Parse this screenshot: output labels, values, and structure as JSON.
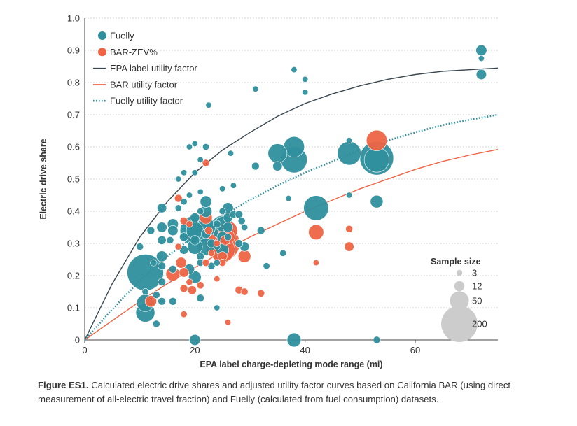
{
  "chart_data": {
    "type": "scatter",
    "xlabel": "EPA label charge-depleting mode range (mi)",
    "ylabel": "Electric drive share",
    "xlim": [
      0,
      75
    ],
    "ylim": [
      0,
      1.0
    ],
    "x_ticks": [
      0,
      20,
      40,
      60
    ],
    "y_ticks": [
      0,
      0.1,
      0.2,
      0.3,
      0.4,
      0.5,
      0.6,
      0.7,
      0.8,
      0.9,
      1.0
    ],
    "x_tick_labels": [
      "0",
      "20",
      "40",
      "60"
    ],
    "y_tick_labels": [
      "0",
      "0.1",
      "0.2",
      "0.3",
      "0.4",
      "0.5",
      "0.6",
      "0.7",
      "0.8",
      "0.9",
      "1.0"
    ],
    "grid": "horizontal dotted",
    "colors": {
      "fuelly": "#2f8f9d",
      "bar": "#ee6444",
      "epa": "#3a4750",
      "size_legend": "#cccccc"
    },
    "series": [
      {
        "name": "Fuelly",
        "kind": "points",
        "points": [
          {
            "x": 11,
            "y": 0.21,
            "n": 200
          },
          {
            "x": 11,
            "y": 0.085,
            "n": 50
          },
          {
            "x": 11,
            "y": 0.115,
            "n": 40
          },
          {
            "x": 11,
            "y": 0.15,
            "n": 4
          },
          {
            "x": 10,
            "y": 0.29,
            "n": 5
          },
          {
            "x": 12,
            "y": 0.34,
            "n": 6
          },
          {
            "x": 12.5,
            "y": 0.24,
            "n": 4
          },
          {
            "x": 13,
            "y": 0.05,
            "n": 5
          },
          {
            "x": 13,
            "y": 0.14,
            "n": 5
          },
          {
            "x": 14,
            "y": 0.41,
            "n": 10
          },
          {
            "x": 14,
            "y": 0.35,
            "n": 12
          },
          {
            "x": 14,
            "y": 0.31,
            "n": 8
          },
          {
            "x": 14,
            "y": 0.26,
            "n": 14
          },
          {
            "x": 14,
            "y": 0.23,
            "n": 6
          },
          {
            "x": 14,
            "y": 0.12,
            "n": 6
          },
          {
            "x": 14,
            "y": 0.18,
            "n": 6
          },
          {
            "x": 15.5,
            "y": 0.31,
            "n": 5
          },
          {
            "x": 16,
            "y": 0.34,
            "n": 12
          },
          {
            "x": 16,
            "y": 0.36,
            "n": 14
          },
          {
            "x": 16,
            "y": 0.22,
            "n": 6
          },
          {
            "x": 16,
            "y": 0.12,
            "n": 6
          },
          {
            "x": 17,
            "y": 0.5,
            "n": 3
          },
          {
            "x": 17,
            "y": 0.41,
            "n": 4
          },
          {
            "x": 18,
            "y": 0.32,
            "n": 8
          },
          {
            "x": 18,
            "y": 0.28,
            "n": 8
          },
          {
            "x": 18,
            "y": 0.52,
            "n": 3
          },
          {
            "x": 18,
            "y": 0.43,
            "n": 4
          },
          {
            "x": 19,
            "y": 0.6,
            "n": 3
          },
          {
            "x": 19,
            "y": 0.45,
            "n": 3
          },
          {
            "x": 19,
            "y": 0.22,
            "n": 12
          },
          {
            "x": 20,
            "y": 0.34,
            "n": 130
          },
          {
            "x": 20,
            "y": 0.34,
            "n": 40
          },
          {
            "x": 20,
            "y": 0.29,
            "n": 30
          },
          {
            "x": 20,
            "y": 0.195,
            "n": 20
          },
          {
            "x": 20,
            "y": 0.31,
            "n": 10
          },
          {
            "x": 20,
            "y": 0.0,
            "n": 14
          },
          {
            "x": 20,
            "y": 0.61,
            "n": 3
          },
          {
            "x": 20,
            "y": 0.38,
            "n": 10
          },
          {
            "x": 20,
            "y": 0.52,
            "n": 3
          },
          {
            "x": 21,
            "y": 0.26,
            "n": 6
          },
          {
            "x": 21,
            "y": 0.24,
            "n": 5
          },
          {
            "x": 21,
            "y": 0.4,
            "n": 4
          },
          {
            "x": 21,
            "y": 0.46,
            "n": 3
          },
          {
            "x": 21,
            "y": 0.13,
            "n": 6
          },
          {
            "x": 21,
            "y": 0.56,
            "n": 3
          },
          {
            "x": 22,
            "y": 0.35,
            "n": 50
          },
          {
            "x": 22,
            "y": 0.29,
            "n": 40
          },
          {
            "x": 22,
            "y": 0.43,
            "n": 16
          },
          {
            "x": 22,
            "y": 0.4,
            "n": 18
          },
          {
            "x": 22,
            "y": 0.33,
            "n": 10
          },
          {
            "x": 22,
            "y": 0.6,
            "n": 4
          },
          {
            "x": 22.5,
            "y": 0.73,
            "n": 3
          },
          {
            "x": 23,
            "y": 0.3,
            "n": 8
          },
          {
            "x": 23,
            "y": 0.23,
            "n": 5
          },
          {
            "x": 24,
            "y": 0.36,
            "n": 6
          },
          {
            "x": 24,
            "y": 0.29,
            "n": 4
          },
          {
            "x": 24,
            "y": 0.24,
            "n": 4
          },
          {
            "x": 24,
            "y": 0.1,
            "n": 3
          },
          {
            "x": 25,
            "y": 0.35,
            "n": 80
          },
          {
            "x": 25,
            "y": 0.36,
            "n": 30
          },
          {
            "x": 25,
            "y": 0.28,
            "n": 20
          },
          {
            "x": 25,
            "y": 0.32,
            "n": 14
          },
          {
            "x": 25,
            "y": 0.47,
            "n": 3
          },
          {
            "x": 25,
            "y": 0.4,
            "n": 4
          },
          {
            "x": 26,
            "y": 0.41,
            "n": 14
          },
          {
            "x": 26,
            "y": 0.35,
            "n": 12
          },
          {
            "x": 26,
            "y": 0.38,
            "n": 10
          },
          {
            "x": 26,
            "y": 0.32,
            "n": 5
          },
          {
            "x": 26.5,
            "y": 0.58,
            "n": 3
          },
          {
            "x": 27,
            "y": 0.39,
            "n": 6
          },
          {
            "x": 27,
            "y": 0.48,
            "n": 3
          },
          {
            "x": 28,
            "y": 0.39,
            "n": 6
          },
          {
            "x": 28,
            "y": 0.3,
            "n": 6
          },
          {
            "x": 28.5,
            "y": 0.37,
            "n": 5
          },
          {
            "x": 29,
            "y": 0.29,
            "n": 10
          },
          {
            "x": 29,
            "y": 0.35,
            "n": 4
          },
          {
            "x": 31,
            "y": 0.54,
            "n": 6
          },
          {
            "x": 31,
            "y": 0.78,
            "n": 3
          },
          {
            "x": 32,
            "y": 0.34,
            "n": 6
          },
          {
            "x": 33,
            "y": 0.23,
            "n": 4
          },
          {
            "x": 35,
            "y": 0.58,
            "n": 50
          },
          {
            "x": 35,
            "y": 0.54,
            "n": 10
          },
          {
            "x": 36,
            "y": 0.27,
            "n": 4
          },
          {
            "x": 38,
            "y": 0.6,
            "n": 60
          },
          {
            "x": 38,
            "y": 0.56,
            "n": 100
          },
          {
            "x": 38,
            "y": 0.0,
            "n": 25
          },
          {
            "x": 38,
            "y": 0.84,
            "n": 3
          },
          {
            "x": 37,
            "y": 0.44,
            "n": 3
          },
          {
            "x": 40,
            "y": 0.81,
            "n": 3
          },
          {
            "x": 40,
            "y": 0.77,
            "n": 3
          },
          {
            "x": 42,
            "y": 0.41,
            "n": 90
          },
          {
            "x": 48,
            "y": 0.58,
            "n": 80
          },
          {
            "x": 48,
            "y": 0.62,
            "n": 3
          },
          {
            "x": 48,
            "y": 0.45,
            "n": 3
          },
          {
            "x": 53,
            "y": 0.565,
            "n": 170
          },
          {
            "x": 53,
            "y": 0.56,
            "n": 90
          },
          {
            "x": 53,
            "y": 0.43,
            "n": 20
          },
          {
            "x": 53,
            "y": 0.0,
            "n": 5
          },
          {
            "x": 72,
            "y": 0.9,
            "n": 14
          },
          {
            "x": 72,
            "y": 0.875,
            "n": 3
          },
          {
            "x": 72,
            "y": 0.825,
            "n": 12
          }
        ]
      },
      {
        "name": "BAR-ZEV%",
        "kind": "points",
        "points": [
          {
            "x": 12,
            "y": 0.12,
            "n": 16
          },
          {
            "x": 16,
            "y": 0.205,
            "n": 25
          },
          {
            "x": 17,
            "y": 0.29,
            "n": 4
          },
          {
            "x": 17.5,
            "y": 0.24,
            "n": 14
          },
          {
            "x": 18,
            "y": 0.21,
            "n": 10
          },
          {
            "x": 17,
            "y": 0.44,
            "n": 6
          },
          {
            "x": 18,
            "y": 0.37,
            "n": 6
          },
          {
            "x": 18,
            "y": 0.16,
            "n": 6
          },
          {
            "x": 18,
            "y": 0.08,
            "n": 4
          },
          {
            "x": 19,
            "y": 0.18,
            "n": 4
          },
          {
            "x": 19,
            "y": 0.36,
            "n": 4
          },
          {
            "x": 19.5,
            "y": 0.155,
            "n": 8
          },
          {
            "x": 21,
            "y": 0.17,
            "n": 5
          },
          {
            "x": 22,
            "y": 0.55,
            "n": 5
          },
          {
            "x": 22,
            "y": 0.24,
            "n": 5
          },
          {
            "x": 22,
            "y": 0.38,
            "n": 20
          },
          {
            "x": 22.5,
            "y": 0.34,
            "n": 6
          },
          {
            "x": 23,
            "y": 0.27,
            "n": 4
          },
          {
            "x": 24,
            "y": 0.3,
            "n": 4
          },
          {
            "x": 24,
            "y": 0.19,
            "n": 3
          },
          {
            "x": 25,
            "y": 0.3,
            "n": 180
          },
          {
            "x": 25,
            "y": 0.28,
            "n": 90
          },
          {
            "x": 25,
            "y": 0.26,
            "n": 10
          },
          {
            "x": 25,
            "y": 0.24,
            "n": 5
          },
          {
            "x": 26,
            "y": 0.34,
            "n": 50
          },
          {
            "x": 26,
            "y": 0.32,
            "n": 25
          },
          {
            "x": 25.5,
            "y": 0.31,
            "n": 10
          },
          {
            "x": 26,
            "y": 0.055,
            "n": 3
          },
          {
            "x": 28,
            "y": 0.155,
            "n": 6
          },
          {
            "x": 29,
            "y": 0.26,
            "n": 20
          },
          {
            "x": 29,
            "y": 0.15,
            "n": 5
          },
          {
            "x": 32,
            "y": 0.145,
            "n": 5
          },
          {
            "x": 42,
            "y": 0.335,
            "n": 30
          },
          {
            "x": 42,
            "y": 0.24,
            "n": 3
          },
          {
            "x": 48,
            "y": 0.29,
            "n": 10
          },
          {
            "x": 48,
            "y": 0.345,
            "n": 5
          },
          {
            "x": 53,
            "y": 0.62,
            "n": 60
          }
        ]
      },
      {
        "name": "EPA label utility factor",
        "kind": "line",
        "x": [
          0,
          5,
          10,
          15,
          20,
          25,
          30,
          35,
          40,
          45,
          50,
          55,
          60,
          65,
          70,
          75
        ],
        "y": [
          0,
          0.175,
          0.32,
          0.43,
          0.52,
          0.59,
          0.645,
          0.695,
          0.735,
          0.765,
          0.79,
          0.81,
          0.825,
          0.835,
          0.84,
          0.845
        ]
      },
      {
        "name": "BAR utility factor",
        "kind": "line",
        "x": [
          0,
          5,
          10,
          15,
          20,
          25,
          30,
          35,
          40,
          45,
          50,
          55,
          60,
          65,
          70,
          75
        ],
        "y": [
          0,
          0.06,
          0.12,
          0.175,
          0.225,
          0.275,
          0.32,
          0.36,
          0.4,
          0.435,
          0.47,
          0.5,
          0.53,
          0.555,
          0.575,
          0.592
        ]
      },
      {
        "name": "Fuelly utility factor",
        "kind": "line",
        "style": "dotted",
        "x": [
          0,
          5,
          10,
          15,
          20,
          25,
          30,
          35,
          40,
          45,
          50,
          55,
          60,
          65,
          70,
          75
        ],
        "y": [
          0,
          0.095,
          0.185,
          0.26,
          0.325,
          0.385,
          0.435,
          0.48,
          0.52,
          0.555,
          0.59,
          0.62,
          0.645,
          0.668,
          0.685,
          0.7
        ]
      }
    ],
    "legend": {
      "placement": "top-left"
    },
    "size_legend": {
      "title": "Sample size",
      "items": [
        {
          "value": 3,
          "label": "3"
        },
        {
          "value": 12,
          "label": "12"
        },
        {
          "value": 50,
          "label": "50"
        },
        {
          "value": 200,
          "label": "200"
        }
      ],
      "placement": "right"
    }
  },
  "caption": {
    "label": "Figure ES1.",
    "text": " Calculated electric drive shares and adjusted utility factor curves based on California BAR (using direct measurement of all-electric travel fraction) and Fuelly (calculated from fuel consumption) datasets."
  }
}
